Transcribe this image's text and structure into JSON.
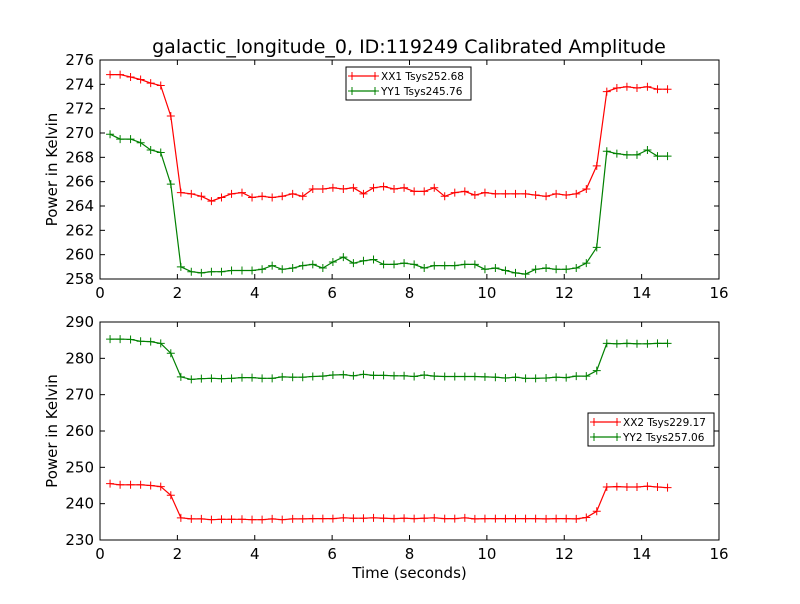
{
  "title": "galactic_longitude_0, ID:119249 Calibrated Amplitude",
  "chart_data": [
    {
      "type": "line",
      "title": "galactic_longitude_0, ID:119249 Calibrated Amplitude",
      "xlabel": "",
      "ylabel": "Power in Kelvin",
      "xlim": [
        0,
        16
      ],
      "ylim": [
        258,
        276
      ],
      "xticks": [
        0,
        2,
        4,
        6,
        8,
        10,
        12,
        14,
        16
      ],
      "yticks": [
        258,
        260,
        262,
        264,
        266,
        268,
        270,
        272,
        274,
        276
      ],
      "grid": false,
      "legend": "top-center",
      "x": [
        0.26,
        0.52,
        0.79,
        1.05,
        1.31,
        1.57,
        1.83,
        2.09,
        2.36,
        2.62,
        2.88,
        3.14,
        3.4,
        3.67,
        3.93,
        4.19,
        4.45,
        4.71,
        4.98,
        5.24,
        5.5,
        5.76,
        6.02,
        6.29,
        6.55,
        6.81,
        7.07,
        7.33,
        7.6,
        7.86,
        8.12,
        8.38,
        8.64,
        8.91,
        9.17,
        9.43,
        9.69,
        9.95,
        10.22,
        10.48,
        10.74,
        11.0,
        11.26,
        11.53,
        11.79,
        12.05,
        12.31,
        12.57,
        12.84,
        13.1,
        13.36,
        13.62,
        13.88,
        14.15,
        14.41,
        14.67
      ],
      "series": [
        {
          "name": "XX1 Tsys252.68",
          "color": "#ff0000",
          "values": [
            274.8,
            274.8,
            274.6,
            274.4,
            274.1,
            273.9,
            271.4,
            265.1,
            265.0,
            264.8,
            264.4,
            264.7,
            265.0,
            265.1,
            264.7,
            264.8,
            264.7,
            264.8,
            265.0,
            264.8,
            265.4,
            265.4,
            265.5,
            265.4,
            265.5,
            265.0,
            265.5,
            265.6,
            265.4,
            265.5,
            265.2,
            265.2,
            265.5,
            264.8,
            265.1,
            265.2,
            264.9,
            265.1,
            265.0,
            265.0,
            265.0,
            265.0,
            264.9,
            264.8,
            265.0,
            264.9,
            265.0,
            265.4,
            267.3,
            273.4,
            273.7,
            273.8,
            273.7,
            273.8,
            273.6,
            273.6
          ]
        },
        {
          "name": "YY1 Tsys245.76",
          "color": "#008000",
          "values": [
            269.9,
            269.5,
            269.5,
            269.2,
            268.6,
            268.4,
            265.8,
            259.0,
            258.6,
            258.5,
            258.6,
            258.6,
            258.7,
            258.7,
            258.7,
            258.8,
            259.1,
            258.8,
            258.9,
            259.1,
            259.2,
            258.9,
            259.4,
            259.8,
            259.3,
            259.5,
            259.6,
            259.2,
            259.2,
            259.3,
            259.2,
            258.9,
            259.1,
            259.1,
            259.1,
            259.2,
            259.2,
            258.8,
            258.9,
            258.7,
            258.5,
            258.4,
            258.8,
            258.9,
            258.8,
            258.8,
            258.9,
            259.3,
            260.6,
            268.5,
            268.3,
            268.2,
            268.2,
            268.6,
            268.1,
            268.1
          ]
        }
      ]
    },
    {
      "type": "line",
      "title": "",
      "xlabel": "Time (seconds)",
      "ylabel": "Power in Kelvin",
      "xlim": [
        0,
        16
      ],
      "ylim": [
        230,
        290
      ],
      "xticks": [
        0,
        2,
        4,
        6,
        8,
        10,
        12,
        14,
        16
      ],
      "yticks": [
        230,
        240,
        250,
        260,
        270,
        280,
        290
      ],
      "grid": false,
      "legend": "center-right",
      "x": [
        0.26,
        0.52,
        0.79,
        1.05,
        1.31,
        1.57,
        1.83,
        2.09,
        2.36,
        2.62,
        2.88,
        3.14,
        3.4,
        3.67,
        3.93,
        4.19,
        4.45,
        4.71,
        4.98,
        5.24,
        5.5,
        5.76,
        6.02,
        6.29,
        6.55,
        6.81,
        7.07,
        7.33,
        7.6,
        7.86,
        8.12,
        8.38,
        8.64,
        8.91,
        9.17,
        9.43,
        9.69,
        9.95,
        10.22,
        10.48,
        10.74,
        11.0,
        11.26,
        11.53,
        11.79,
        12.05,
        12.31,
        12.57,
        12.84,
        13.1,
        13.36,
        13.62,
        13.88,
        14.15,
        14.41,
        14.67
      ],
      "series": [
        {
          "name": "XX2 Tsys229.17",
          "color": "#ff0000",
          "values": [
            245.5,
            245.2,
            245.2,
            245.2,
            245.0,
            244.7,
            242.3,
            236.1,
            235.8,
            235.8,
            235.6,
            235.7,
            235.7,
            235.7,
            235.6,
            235.6,
            235.8,
            235.6,
            235.8,
            235.8,
            235.9,
            235.9,
            235.9,
            236.1,
            236.0,
            236.0,
            236.1,
            236.0,
            235.9,
            236.0,
            235.9,
            236.0,
            236.1,
            235.9,
            235.9,
            236.1,
            235.8,
            235.9,
            235.9,
            235.9,
            235.9,
            235.9,
            235.9,
            235.8,
            235.9,
            235.9,
            235.8,
            236.2,
            237.9,
            244.6,
            244.7,
            244.6,
            244.6,
            244.8,
            244.6,
            244.4
          ]
        },
        {
          "name": "YY2 Tsys257.06",
          "color": "#008000",
          "values": [
            285.3,
            285.3,
            285.2,
            284.7,
            284.6,
            284.1,
            281.4,
            274.9,
            274.2,
            274.4,
            274.5,
            274.4,
            274.5,
            274.7,
            274.7,
            274.5,
            274.5,
            274.9,
            274.8,
            274.8,
            275.0,
            275.1,
            275.4,
            275.5,
            275.2,
            275.6,
            275.3,
            275.3,
            275.2,
            275.2,
            275.0,
            275.4,
            275.1,
            275.0,
            275.0,
            275.0,
            275.0,
            274.9,
            274.8,
            274.6,
            274.8,
            274.5,
            274.5,
            274.6,
            274.8,
            274.7,
            275.1,
            275.1,
            276.6,
            284.1,
            284.0,
            284.1,
            284.0,
            284.0,
            284.1,
            284.1
          ]
        }
      ]
    }
  ]
}
